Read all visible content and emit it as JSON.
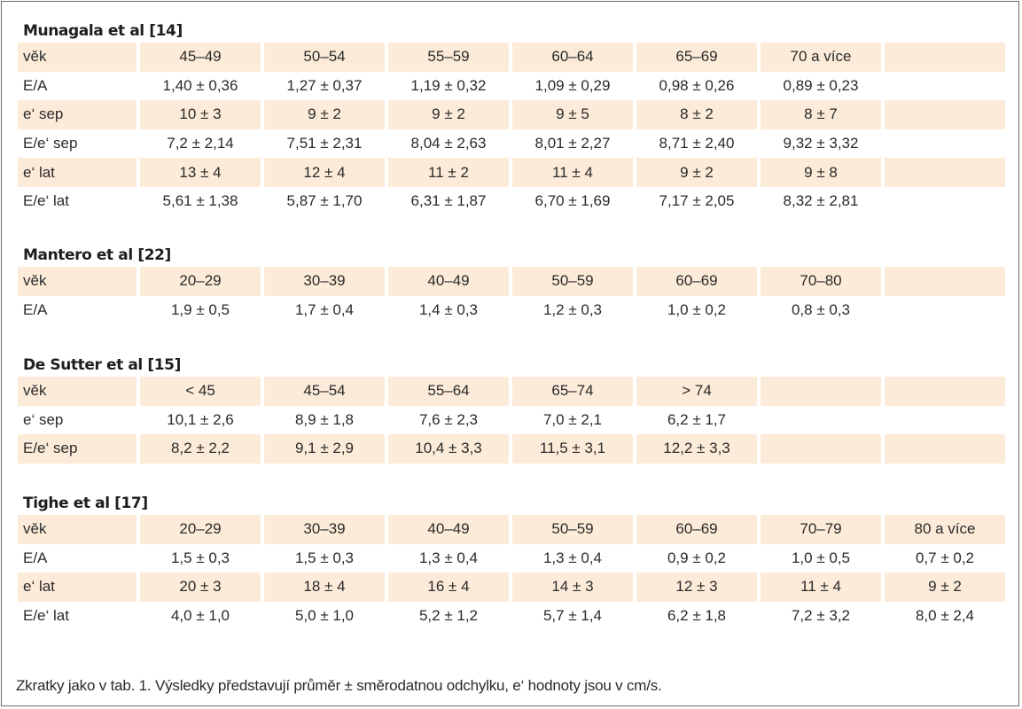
{
  "sections": [
    {
      "title": "Munagala et al [14]",
      "rows": [
        {
          "label": "věk",
          "cells": [
            "45–49",
            "50–54",
            "55–59",
            "60–64",
            "65–69",
            "70 a více",
            ""
          ]
        },
        {
          "label": "E/A",
          "cells": [
            "1,40 ± 0,36",
            "1,27 ± 0,37",
            "1,19 ± 0,32",
            "1,09 ± 0,29",
            "0,98 ± 0,26",
            "0,89 ± 0,23",
            ""
          ]
        },
        {
          "label": "e‘ sep",
          "cells": [
            "10 ± 3",
            "9 ± 2",
            "9 ± 2",
            "9 ± 5",
            "8 ± 2",
            "8 ± 7",
            ""
          ]
        },
        {
          "label": "E/e‘ sep",
          "cells": [
            "7,2 ± 2,14",
            "7,51 ± 2,31",
            "8,04 ± 2,63",
            "8,01 ± 2,27",
            "8,71 ± 2,40",
            "9,32 ± 3,32",
            ""
          ]
        },
        {
          "label": "e‘ lat",
          "cells": [
            "13 ± 4",
            "12 ± 4",
            "11 ± 2",
            "11 ± 4",
            "9 ± 2",
            "9 ± 8",
            ""
          ]
        },
        {
          "label": "E/e‘ lat",
          "cells": [
            "5,61 ± 1,38",
            "5,87 ± 1,70",
            "6,31 ± 1,87",
            "6,70 ± 1,69",
            "7,17 ± 2,05",
            "8,32 ± 2,81",
            ""
          ]
        }
      ]
    },
    {
      "title": "Mantero et al [22]",
      "rows": [
        {
          "label": "věk",
          "cells": [
            "20–29",
            "30–39",
            "40–49",
            "50–59",
            "60–69",
            "70–80",
            ""
          ]
        },
        {
          "label": "E/A",
          "cells": [
            "1,9 ± 0,5",
            "1,7 ± 0,4",
            "1,4 ± 0,3",
            "1,2 ± 0,3",
            "1,0 ± 0,2",
            "0,8 ± 0,3",
            ""
          ]
        }
      ]
    },
    {
      "title": "De Sutter et al [15]",
      "rows": [
        {
          "label": "věk",
          "cells": [
            "< 45",
            "45–54",
            "55–64",
            "65–74",
            "> 74",
            "",
            ""
          ]
        },
        {
          "label": "e‘ sep",
          "cells": [
            "10,1 ± 2,6",
            "8,9 ± 1,8",
            "7,6 ± 2,3",
            "7,0 ± 2,1",
            "6,2 ± 1,7",
            "",
            ""
          ]
        },
        {
          "label": "E/e‘ sep",
          "cells": [
            "8,2 ± 2,2",
            "9,1 ± 2,9",
            "10,4 ± 3,3",
            "11,5 ± 3,1",
            "12,2 ± 3,3",
            "",
            ""
          ]
        }
      ]
    },
    {
      "title": "Tighe et al [17]",
      "rows": [
        {
          "label": "věk",
          "cells": [
            "20–29",
            "30–39",
            "40–49",
            "50–59",
            "60–69",
            "70–79",
            "80 a více"
          ]
        },
        {
          "label": "E/A",
          "cells": [
            "1,5 ± 0,3",
            "1,5 ± 0,3",
            "1,3 ± 0,4",
            "1,3 ± 0,4",
            "0,9 ± 0,2",
            "1,0 ± 0,5",
            "0,7 ± 0,2"
          ]
        },
        {
          "label": "e‘ lat",
          "cells": [
            "20 ± 3",
            "18 ± 4",
            "16 ± 4",
            "14 ± 3",
            "12 ± 3",
            "11 ± 4",
            "9 ± 2"
          ]
        },
        {
          "label": "E/e‘ lat",
          "cells": [
            "4,0 ± 1,0",
            "5,0 ± 1,0",
            "5,2 ± 1,2",
            "5,7 ± 1,4",
            "6,2 ± 1,8",
            "7,2 ± 3,2",
            "8,0 ± 2,4"
          ]
        }
      ]
    }
  ],
  "footnote": "Zkratky jako v tab. 1. Výsledky představují průměr ± směrodatnou odchylku, e‘ hodnoty jsou v cm/s.",
  "colors": {
    "row_shade": "#fcebd8",
    "border": "#6a6a6a",
    "text": "#2a2a2a"
  }
}
